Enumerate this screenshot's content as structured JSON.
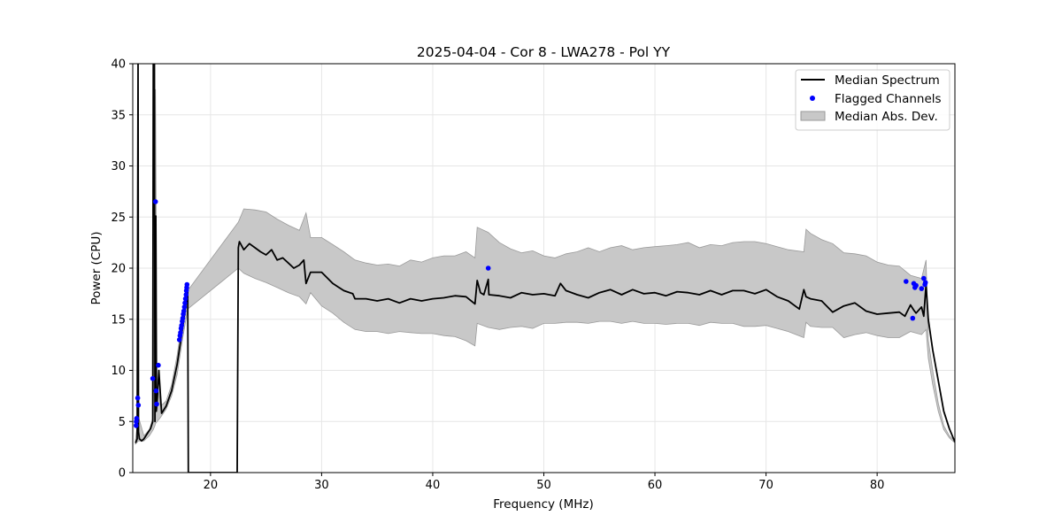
{
  "chart_data": {
    "type": "line",
    "title": "2025-04-04 - Cor 8 - LWA278 - Pol YY",
    "xlabel": "Frequency (MHz)",
    "ylabel": "Power (CPU)",
    "xlim": [
      13,
      87
    ],
    "ylim": [
      0,
      40
    ],
    "xticks": [
      20,
      30,
      40,
      50,
      60,
      70,
      80
    ],
    "yticks": [
      0,
      5,
      10,
      15,
      20,
      25,
      30,
      35,
      40
    ],
    "grid": true,
    "legend_position": "top-right",
    "colors": {
      "median": "#000000",
      "flagged": "#0000ff",
      "mad_fill": "#c8c8c8",
      "mad_edge": "#9a9a9a",
      "grid": "#e6e6e6"
    },
    "series": [
      {
        "name": "Median Spectrum",
        "kind": "line",
        "x": [
          13.25,
          13.4,
          13.48,
          13.52,
          13.6,
          13.8,
          14.0,
          14.3,
          14.6,
          14.8,
          14.85,
          14.95,
          15.0,
          15.08,
          15.12,
          15.2,
          15.35,
          15.6,
          16.0,
          16.5,
          17.0,
          17.3,
          17.6,
          17.85,
          17.95,
          18.0,
          18.05,
          22.4,
          22.5,
          22.6,
          23.0,
          23.5,
          24.0,
          24.5,
          25.0,
          25.5,
          26.0,
          26.5,
          27.0,
          27.5,
          28.0,
          28.4,
          28.6,
          29.0,
          30.0,
          31.0,
          32.0,
          32.8,
          33.0,
          34.0,
          35.0,
          36.0,
          37.0,
          38.0,
          39.0,
          40.0,
          41.0,
          42.0,
          43.0,
          43.8,
          44.0,
          44.3,
          44.6,
          45.0,
          45.05,
          46.0,
          47.0,
          48.0,
          49.0,
          50.0,
          51.0,
          51.5,
          52.0,
          53.0,
          54.0,
          55.0,
          56.0,
          57.0,
          58.0,
          59.0,
          60.0,
          61.0,
          62.0,
          63.0,
          64.0,
          65.0,
          66.0,
          67.0,
          68.0,
          69.0,
          70.0,
          71.0,
          72.0,
          73.0,
          73.4,
          73.6,
          74.0,
          75.0,
          76.0,
          77.0,
          78.0,
          79.0,
          80.0,
          81.0,
          82.0,
          82.5,
          83.0,
          83.3,
          83.5,
          84.0,
          84.2,
          84.4,
          84.6,
          85.0,
          85.5,
          86.0,
          86.5,
          87.0
        ],
        "y": [
          2.9,
          3.3,
          40.0,
          4.0,
          3.3,
          3.1,
          3.3,
          3.8,
          4.3,
          5.0,
          40.0,
          40.0,
          5.0,
          25.1,
          6.0,
          7.0,
          10.0,
          5.8,
          6.5,
          8.0,
          10.6,
          12.8,
          15.0,
          17.0,
          18.0,
          0.0,
          0.0,
          0.0,
          22.0,
          22.6,
          21.8,
          22.4,
          22.0,
          21.6,
          21.3,
          21.8,
          20.8,
          21.0,
          20.5,
          20.0,
          20.3,
          20.8,
          18.5,
          19.6,
          19.6,
          18.5,
          17.8,
          17.5,
          17.0,
          17.0,
          16.8,
          17.0,
          16.6,
          17.0,
          16.8,
          17.0,
          17.1,
          17.3,
          17.2,
          16.5,
          18.8,
          17.6,
          17.4,
          18.9,
          17.4,
          17.3,
          17.1,
          17.6,
          17.4,
          17.5,
          17.3,
          18.5,
          17.8,
          17.4,
          17.1,
          17.6,
          17.9,
          17.4,
          17.9,
          17.5,
          17.6,
          17.3,
          17.7,
          17.6,
          17.4,
          17.8,
          17.4,
          17.8,
          17.8,
          17.5,
          17.9,
          17.2,
          16.8,
          16.0,
          17.9,
          17.2,
          17.0,
          16.8,
          15.7,
          16.3,
          16.6,
          15.8,
          15.5,
          15.6,
          15.7,
          15.3,
          16.4,
          15.9,
          15.6,
          16.2,
          15.3,
          18.4,
          15.0,
          12.0,
          9.0,
          6.0,
          4.3,
          3.0
        ]
      },
      {
        "name": "Flagged Channels",
        "kind": "scatter",
        "points": [
          [
            13.3,
            4.6
          ],
          [
            13.32,
            5.0
          ],
          [
            13.35,
            5.3
          ],
          [
            13.45,
            7.3
          ],
          [
            13.5,
            6.6
          ],
          [
            14.8,
            9.2
          ],
          [
            15.05,
            26.5
          ],
          [
            15.1,
            8.0
          ],
          [
            15.15,
            6.7
          ],
          [
            15.3,
            10.5
          ],
          [
            17.2,
            13.0
          ],
          [
            17.25,
            13.4
          ],
          [
            17.3,
            13.7
          ],
          [
            17.35,
            14.1
          ],
          [
            17.4,
            14.4
          ],
          [
            17.45,
            14.8
          ],
          [
            17.5,
            15.1
          ],
          [
            17.55,
            15.5
          ],
          [
            17.6,
            15.8
          ],
          [
            17.65,
            16.2
          ],
          [
            17.7,
            16.6
          ],
          [
            17.75,
            17.0
          ],
          [
            17.8,
            17.4
          ],
          [
            17.83,
            17.8
          ],
          [
            17.86,
            18.1
          ],
          [
            17.88,
            18.4
          ],
          [
            45.0,
            20.0
          ],
          [
            82.6,
            18.7
          ],
          [
            83.2,
            15.1
          ],
          [
            83.3,
            18.5
          ],
          [
            83.4,
            18.1
          ],
          [
            83.5,
            18.3
          ],
          [
            84.0,
            18.0
          ],
          [
            84.2,
            19.0
          ],
          [
            84.3,
            18.4
          ],
          [
            84.35,
            18.6
          ]
        ]
      },
      {
        "name": "Median Abs. Dev.",
        "kind": "band",
        "x": [
          13.25,
          13.5,
          14.0,
          14.5,
          14.85,
          15.0,
          15.05,
          15.2,
          15.5,
          16.0,
          16.5,
          17.0,
          17.5,
          17.95,
          22.5,
          23.0,
          24.0,
          25.0,
          26.0,
          27.0,
          28.0,
          28.6,
          29.0,
          30.0,
          31.0,
          32.0,
          33.0,
          34.0,
          35.0,
          36.0,
          37.0,
          38.0,
          39.0,
          40.0,
          41.0,
          42.0,
          43.0,
          43.8,
          44.0,
          45.0,
          46.0,
          47.0,
          48.0,
          49.0,
          50.0,
          51.0,
          52.0,
          53.0,
          54.0,
          55.0,
          56.0,
          57.0,
          58.0,
          59.0,
          60.0,
          61.0,
          62.0,
          63.0,
          64.0,
          65.0,
          66.0,
          67.0,
          68.0,
          69.0,
          70.0,
          71.0,
          72.0,
          73.4,
          73.6,
          74.0,
          75.0,
          76.0,
          77.0,
          78.0,
          79.0,
          80.0,
          81.0,
          82.0,
          83.0,
          84.0,
          84.4,
          84.6,
          85.0,
          85.5,
          86.0,
          86.5,
          87.0
        ],
        "lower": [
          2.8,
          3.1,
          3.1,
          3.6,
          4.2,
          4.6,
          4.8,
          5.0,
          5.4,
          6.2,
          7.5,
          9.6,
          13.2,
          16.0,
          20.0,
          19.5,
          19.0,
          18.6,
          18.1,
          17.6,
          17.2,
          16.5,
          17.6,
          16.3,
          15.6,
          14.7,
          14.0,
          13.8,
          13.8,
          13.6,
          13.8,
          13.7,
          13.6,
          13.6,
          13.4,
          13.3,
          12.9,
          12.4,
          14.6,
          14.2,
          14.0,
          14.2,
          14.3,
          14.1,
          14.6,
          14.6,
          14.7,
          14.7,
          14.6,
          14.8,
          14.8,
          14.6,
          14.8,
          14.6,
          14.6,
          14.5,
          14.6,
          14.6,
          14.4,
          14.7,
          14.6,
          14.6,
          14.3,
          14.3,
          14.4,
          14.1,
          13.8,
          13.2,
          14.7,
          14.3,
          14.2,
          14.2,
          13.2,
          13.5,
          13.7,
          13.4,
          13.2,
          13.2,
          13.8,
          13.5,
          14.0,
          11.2,
          8.6,
          6.0,
          4.2,
          3.4,
          2.9
        ],
        "upper": [
          3.2,
          5.5,
          3.6,
          4.2,
          5.5,
          36.0,
          37.5,
          9.0,
          6.5,
          7.0,
          8.6,
          11.5,
          15.2,
          17.8,
          24.5,
          25.8,
          25.7,
          25.5,
          24.8,
          24.2,
          23.7,
          25.4,
          23.0,
          23.0,
          22.3,
          21.6,
          20.8,
          20.5,
          20.3,
          20.4,
          20.2,
          20.8,
          20.6,
          21.0,
          21.2,
          21.2,
          21.6,
          21.0,
          24.0,
          23.5,
          22.5,
          21.9,
          21.5,
          21.7,
          21.2,
          21.0,
          21.4,
          21.6,
          22.0,
          21.6,
          22.0,
          22.2,
          21.8,
          22.0,
          22.1,
          22.2,
          22.3,
          22.5,
          22.0,
          22.3,
          22.2,
          22.5,
          22.6,
          22.6,
          22.4,
          22.1,
          21.8,
          21.6,
          23.8,
          23.4,
          22.8,
          22.4,
          21.5,
          21.4,
          21.2,
          20.6,
          20.3,
          20.2,
          19.3,
          19.0,
          20.8,
          13.0,
          10.0,
          6.8,
          4.6,
          3.6,
          3.1
        ]
      }
    ],
    "legend": [
      "Median Spectrum",
      "Flagged Channels",
      "Median Abs. Dev."
    ]
  }
}
